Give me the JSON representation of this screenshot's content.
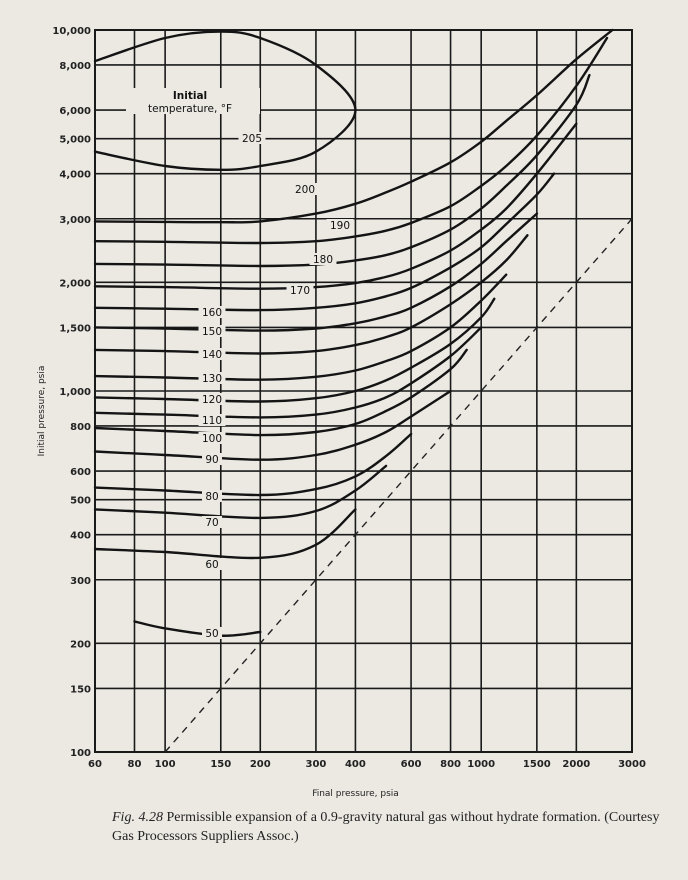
{
  "chart_data": {
    "type": "line",
    "xlabel": "Final pressure, psia",
    "ylabel": "Initial pressure, psia",
    "x_scale": "log",
    "y_scale": "log",
    "xlim": [
      60,
      3000
    ],
    "ylim": [
      100,
      10000
    ],
    "grid": true,
    "x_ticks": [
      {
        "value": 60,
        "label": "60"
      },
      {
        "value": 80,
        "label": "80"
      },
      {
        "value": 100,
        "label": "100"
      },
      {
        "value": 150,
        "label": "150"
      },
      {
        "value": 200,
        "label": "200"
      },
      {
        "value": 300,
        "label": "300"
      },
      {
        "value": 400,
        "label": "400"
      },
      {
        "value": 600,
        "label": "600"
      },
      {
        "value": 800,
        "label": "800"
      },
      {
        "value": 1000,
        "label": "1000"
      },
      {
        "value": 1500,
        "label": "1500"
      },
      {
        "value": 2000,
        "label": "2000"
      },
      {
        "value": 3000,
        "label": "3000"
      }
    ],
    "y_ticks": [
      {
        "value": 100,
        "label": "100"
      },
      {
        "value": 150,
        "label": "150"
      },
      {
        "value": 200,
        "label": "200"
      },
      {
        "value": 300,
        "label": "300"
      },
      {
        "value": 400,
        "label": "400"
      },
      {
        "value": 500,
        "label": "500"
      },
      {
        "value": 600,
        "label": "600"
      },
      {
        "value": 800,
        "label": "800"
      },
      {
        "value": 1000,
        "label": "1,000"
      },
      {
        "value": 1500,
        "label": "1,500"
      },
      {
        "value": 2000,
        "label": "2,000"
      },
      {
        "value": 3000,
        "label": "3,000"
      },
      {
        "value": 4000,
        "label": "4,000"
      },
      {
        "value": 5000,
        "label": "5,000"
      },
      {
        "value": 6000,
        "label": "6,000"
      },
      {
        "value": 8000,
        "label": "8,000"
      },
      {
        "value": 10000,
        "label": "10,000"
      }
    ],
    "legend_title": "Initial temperature, °F",
    "series": [
      {
        "name": "50",
        "x": [
          80,
          100,
          150,
          200
        ],
        "y": [
          230,
          220,
          210,
          215
        ]
      },
      {
        "name": "60",
        "x": [
          60,
          100,
          200,
          300,
          400
        ],
        "y": [
          365,
          358,
          345,
          375,
          470
        ]
      },
      {
        "name": "70",
        "x": [
          60,
          100,
          200,
          300,
          400,
          500
        ],
        "y": [
          470,
          460,
          445,
          465,
          530,
          620
        ]
      },
      {
        "name": "80",
        "x": [
          60,
          100,
          200,
          300,
          400,
          500,
          600
        ],
        "y": [
          540,
          530,
          515,
          535,
          580,
          660,
          760
        ]
      },
      {
        "name": "90",
        "x": [
          60,
          100,
          200,
          300,
          400,
          500,
          600,
          800
        ],
        "y": [
          680,
          665,
          645,
          665,
          710,
          770,
          850,
          1000
        ]
      },
      {
        "name": "100",
        "x": [
          60,
          100,
          200,
          300,
          400,
          500,
          600,
          800,
          900
        ],
        "y": [
          790,
          775,
          755,
          770,
          810,
          880,
          960,
          1150,
          1300
        ]
      },
      {
        "name": "110",
        "x": [
          60,
          100,
          200,
          300,
          400,
          500,
          600,
          800,
          1000
        ],
        "y": [
          870,
          860,
          845,
          860,
          900,
          960,
          1050,
          1250,
          1500
        ]
      },
      {
        "name": "120",
        "x": [
          60,
          100,
          200,
          300,
          400,
          500,
          600,
          800,
          1000,
          1100
        ],
        "y": [
          960,
          950,
          935,
          955,
          1000,
          1070,
          1160,
          1350,
          1600,
          1800
        ]
      },
      {
        "name": "130",
        "x": [
          60,
          100,
          200,
          300,
          400,
          500,
          600,
          800,
          1000,
          1200
        ],
        "y": [
          1100,
          1090,
          1075,
          1095,
          1140,
          1210,
          1290,
          1500,
          1780,
          2100
        ]
      },
      {
        "name": "140",
        "x": [
          60,
          100,
          200,
          300,
          400,
          500,
          600,
          800,
          1000,
          1200,
          1400
        ],
        "y": [
          1300,
          1290,
          1270,
          1290,
          1340,
          1410,
          1500,
          1740,
          2000,
          2300,
          2700
        ]
      },
      {
        "name": "150",
        "x": [
          60,
          100,
          200,
          300,
          400,
          500,
          600,
          800,
          1000,
          1200,
          1500
        ],
        "y": [
          1500,
          1490,
          1470,
          1490,
          1540,
          1610,
          1700,
          1950,
          2250,
          2600,
          3100
        ]
      },
      {
        "name": "160",
        "x": [
          60,
          100,
          200,
          300,
          400,
          500,
          600,
          800,
          1000,
          1200,
          1500,
          1700
        ],
        "y": [
          1700,
          1690,
          1675,
          1700,
          1750,
          1830,
          1930,
          2200,
          2500,
          2900,
          3500,
          4000
        ]
      },
      {
        "name": "170",
        "x": [
          60,
          100,
          200,
          300,
          400,
          500,
          600,
          800,
          1000,
          1200,
          1500,
          2000
        ],
        "y": [
          1950,
          1940,
          1920,
          1940,
          1990,
          2070,
          2180,
          2450,
          2800,
          3200,
          4000,
          5500
        ]
      },
      {
        "name": "180",
        "x": [
          60,
          100,
          200,
          300,
          400,
          500,
          600,
          800,
          1000,
          1200,
          1500,
          2000,
          2200
        ],
        "y": [
          2250,
          2240,
          2220,
          2240,
          2300,
          2380,
          2500,
          2800,
          3200,
          3700,
          4500,
          6200,
          7500
        ]
      },
      {
        "name": "190",
        "x": [
          60,
          100,
          200,
          300,
          400,
          500,
          600,
          800,
          1000,
          1200,
          1500,
          2000,
          2500
        ],
        "y": [
          2600,
          2590,
          2570,
          2600,
          2680,
          2780,
          2920,
          3250,
          3700,
          4200,
          5100,
          7000,
          9500
        ]
      },
      {
        "name": "200",
        "x": [
          60,
          100,
          150,
          200,
          300,
          400,
          500,
          600,
          800,
          1000,
          1200,
          1500,
          2000,
          2600
        ],
        "y": [
          2950,
          2940,
          2935,
          2950,
          3100,
          3300,
          3550,
          3800,
          4300,
          4900,
          5600,
          6600,
          8300,
          10000
        ]
      },
      {
        "name": "205",
        "x": [
          60,
          100,
          150,
          200,
          300,
          400,
          300,
          200,
          150,
          100,
          60
        ],
        "y": [
          8200,
          9500,
          9900,
          9500,
          8000,
          6000,
          4600,
          4200,
          4100,
          4200,
          4600
        ]
      }
    ],
    "reference_line": {
      "style": "dashed",
      "x": [
        100,
        3000
      ],
      "y": [
        100,
        3000
      ]
    }
  },
  "caption": {
    "figure_number": "Fig. 4.28",
    "text": "Permissible expansion of a 0.9-gravity natural gas without hydrate formation. (Courtesy Gas Processors Suppliers Assoc.)"
  }
}
